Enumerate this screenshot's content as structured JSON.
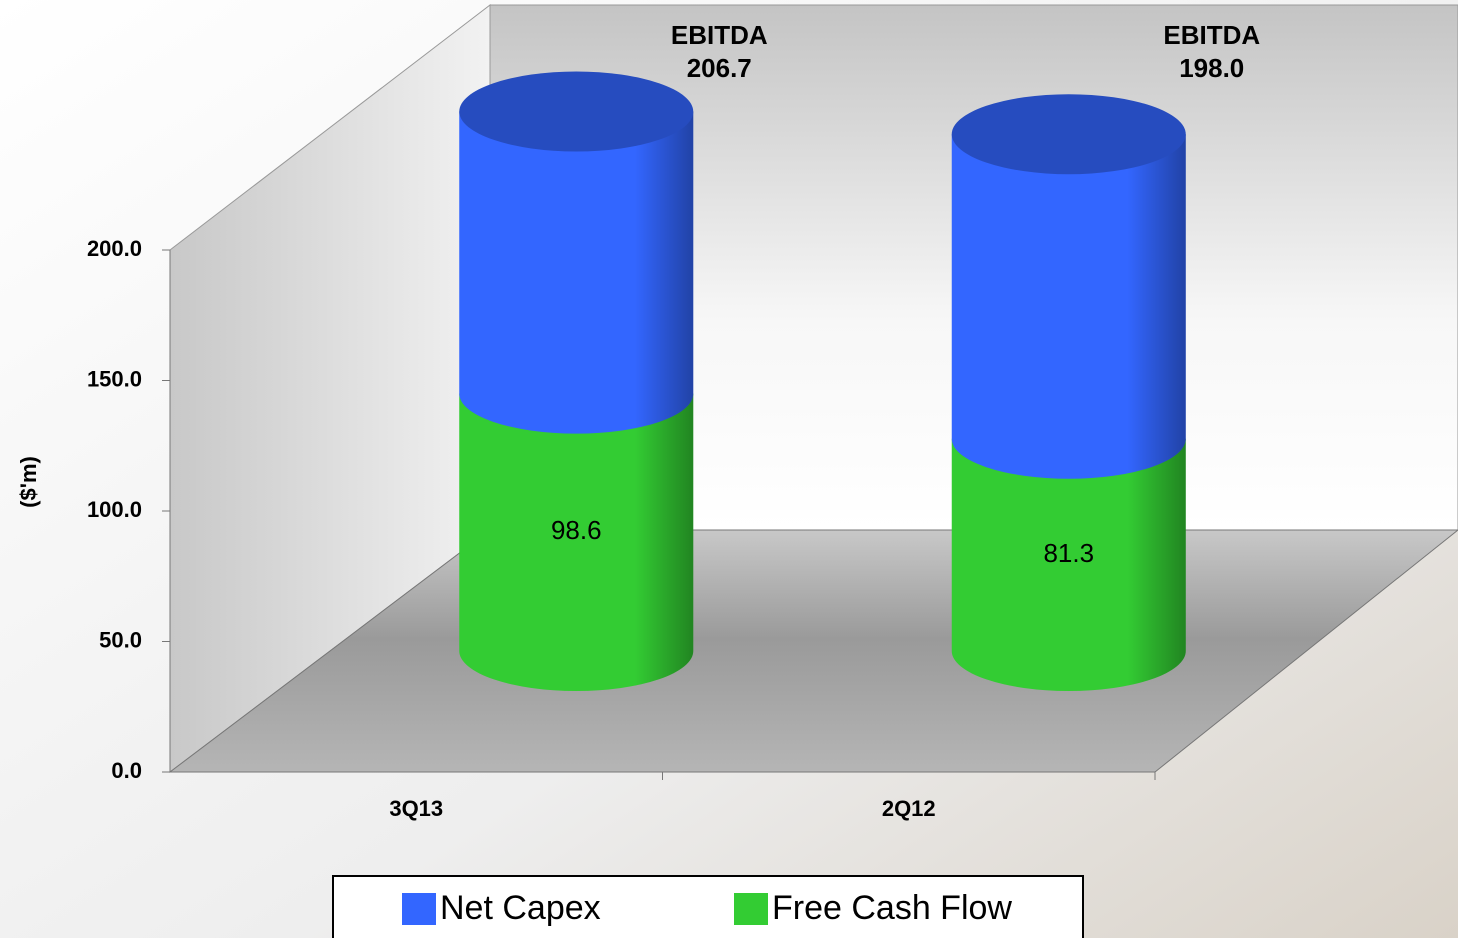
{
  "chart_data": {
    "type": "bar3d-stacked",
    "y_label": "($'m)",
    "categories": [
      "3Q13",
      "2Q12"
    ],
    "series": [
      {
        "name": "Free Cash Flow",
        "color": "#33cc33",
        "values": [
          98.6,
          81.3
        ]
      },
      {
        "name": "Net Capex",
        "color": "#3366ff",
        "values": [
          108.1,
          116.7
        ]
      }
    ],
    "annotations": [
      {
        "label": "EBITDA",
        "value": "206.7"
      },
      {
        "label": "EBITDA",
        "value": "198.0"
      }
    ],
    "ylim": [
      0,
      200
    ],
    "yticks": [
      {
        "value": 0,
        "label": "0.0"
      },
      {
        "value": 50,
        "label": "50.0"
      },
      {
        "value": 100,
        "label": "100.0"
      },
      {
        "value": 150,
        "label": "150.0"
      },
      {
        "value": 200,
        "label": "200.0"
      }
    ],
    "legend_order": [
      1,
      0
    ]
  }
}
